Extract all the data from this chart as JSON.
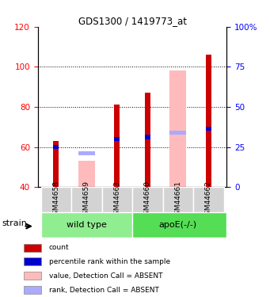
{
  "title": "GDS1300 / 1419773_at",
  "samples": [
    "GSM44658",
    "GSM44659",
    "GSM44663",
    "GSM44660",
    "GSM44661",
    "GSM44662"
  ],
  "ylim_left": [
    40,
    120
  ],
  "ylim_right": [
    0,
    100
  ],
  "yticks_left": [
    40,
    60,
    80,
    100,
    120
  ],
  "yticks_right": [
    0,
    25,
    50,
    75,
    100
  ],
  "ytick_labels_right": [
    "0",
    "25",
    "50",
    "75",
    "100%"
  ],
  "red_bars": [
    63,
    0,
    81,
    87,
    0,
    106
  ],
  "blue_bars": [
    60,
    0,
    64,
    65,
    0,
    69
  ],
  "pink_bars": [
    0,
    53,
    0,
    0,
    98,
    0
  ],
  "lightblue_bars": [
    0,
    57,
    0,
    0,
    67,
    0
  ],
  "red_color": "#cc0000",
  "blue_color": "#0000cc",
  "pink_color": "#ffbbbb",
  "lightblue_color": "#aaaaff",
  "sample_bg": "#d3d3d3",
  "wildtype_color": "#90ee90",
  "apoe_color": "#55dd55",
  "wild_type_label": "wild type",
  "apoe_label": "apoE(-/-)",
  "strain_label": "strain",
  "legend_items": [
    [
      "#cc0000",
      "count"
    ],
    [
      "#0000cc",
      "percentile rank within the sample"
    ],
    [
      "#ffbbbb",
      "value, Detection Call = ABSENT"
    ],
    [
      "#aaaaff",
      "rank, Detection Call = ABSENT"
    ]
  ]
}
